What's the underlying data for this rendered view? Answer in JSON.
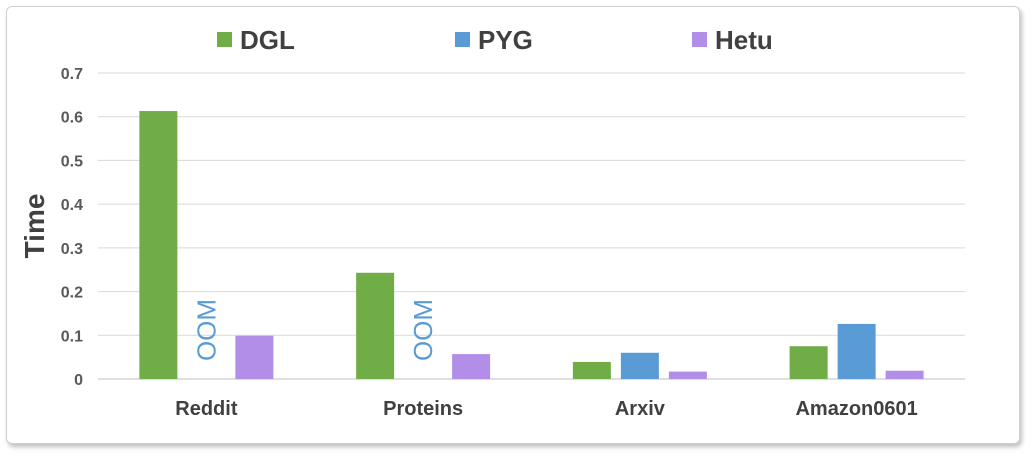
{
  "chart_data": {
    "type": "bar",
    "ylabel": "Time",
    "ylim": [
      0,
      0.7
    ],
    "yticks": [
      "0",
      "0.1",
      "0.2",
      "0.3",
      "0.4",
      "0.5",
      "0.6",
      "0.7"
    ],
    "grid": true,
    "legend_position": "top",
    "categories": [
      "Reddit",
      "Proteins",
      "Arxiv",
      "Amazon0601"
    ],
    "series": [
      {
        "name": "DGL",
        "color": "#70ad47",
        "values": [
          0.613,
          0.243,
          0.039,
          0.075
        ]
      },
      {
        "name": "PYG",
        "color": "#5b9bd5",
        "values": [
          null,
          null,
          0.06,
          0.126
        ]
      },
      {
        "name": "Hetu",
        "color": "#b38ee8",
        "values": [
          0.099,
          0.057,
          0.017,
          0.019
        ]
      }
    ],
    "annotations": [
      {
        "series": "PYG",
        "category": "Reddit",
        "text": "OOM"
      },
      {
        "series": "PYG",
        "category": "Proteins",
        "text": "OOM"
      }
    ]
  }
}
